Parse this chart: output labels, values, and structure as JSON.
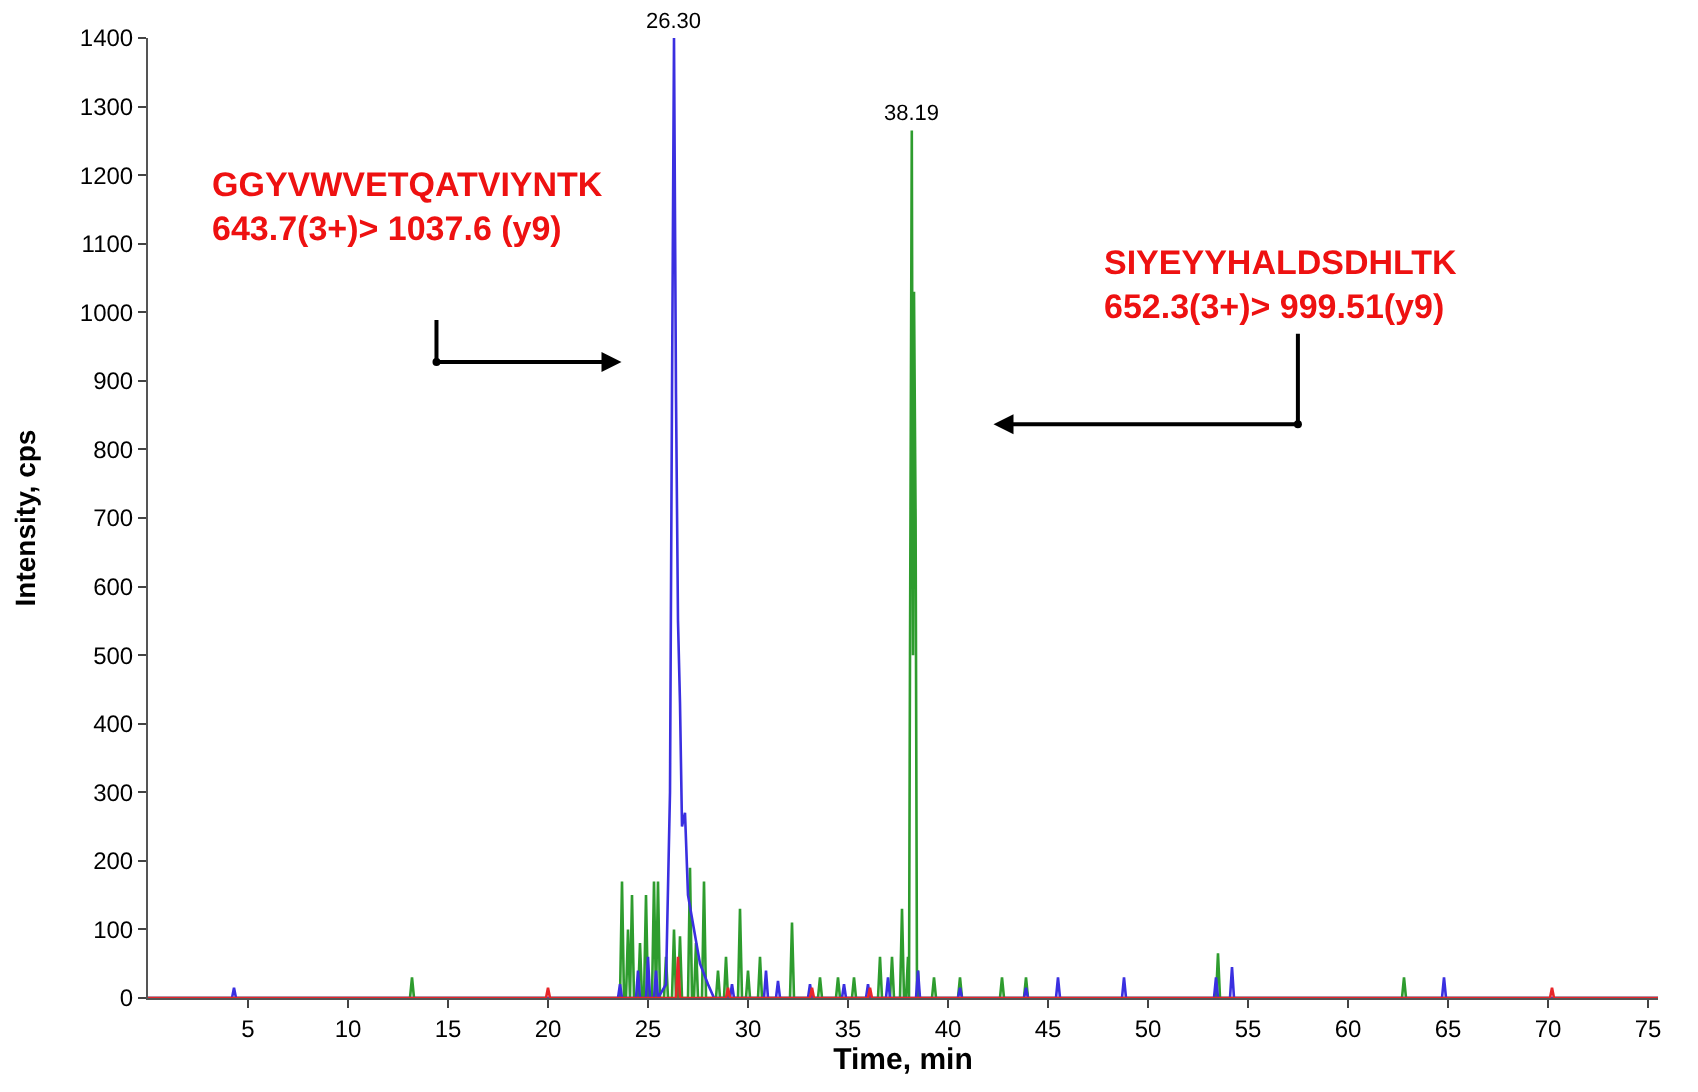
{
  "chart_data": {
    "type": "line",
    "xlabel": "Time, min",
    "ylabel": "Intensity, cps",
    "xlim": [
      0,
      75.5
    ],
    "xticks": [
      5,
      10,
      15,
      20,
      25,
      30,
      35,
      40,
      45,
      50,
      55,
      60,
      65,
      70,
      75
    ],
    "ylim": [
      0,
      1400
    ],
    "yticks": [
      0,
      100,
      200,
      300,
      400,
      500,
      600,
      700,
      800,
      900,
      1000,
      1100,
      1200,
      1300,
      1400
    ],
    "legend": false,
    "marker": "none",
    "line_style": "solid",
    "series": [
      {
        "color": "#2e9c2e",
        "x": [
          0,
          13.1,
          13.2,
          13.3,
          23.6,
          23.7,
          23.8,
          23.9,
          24.0,
          24.1,
          24.2,
          24.3,
          24.5,
          24.6,
          24.7,
          24.8,
          24.9,
          25.0,
          25.2,
          25.3,
          25.4,
          25.5,
          25.6,
          25.8,
          25.9,
          26.0,
          26.2,
          26.3,
          26.4,
          26.5,
          26.6,
          26.7,
          27.0,
          27.1,
          27.2,
          27.3,
          27.4,
          27.5,
          27.7,
          27.8,
          27.9,
          28.4,
          28.5,
          28.6,
          28.8,
          28.9,
          29.0,
          29.5,
          29.6,
          29.7,
          29.9,
          30.0,
          30.1,
          30.5,
          30.6,
          30.7,
          32.1,
          32.2,
          32.3,
          33.5,
          33.6,
          33.7,
          34.4,
          34.5,
          34.6,
          35.2,
          35.3,
          35.4,
          36.5,
          36.6,
          36.7,
          37.1,
          37.2,
          37.3,
          37.6,
          37.7,
          37.8,
          37.9,
          38.0,
          38.05,
          38.1,
          38.19,
          38.25,
          38.3,
          38.38,
          38.45,
          38.5,
          38.55,
          39.2,
          39.3,
          39.4,
          40.5,
          40.6,
          40.7,
          42.6,
          42.7,
          42.8,
          43.8,
          43.9,
          44.0,
          53.4,
          53.5,
          53.6,
          62.7,
          62.8,
          62.9,
          75.5
        ],
        "values": [
          0,
          0,
          30,
          0,
          0,
          170,
          0,
          0,
          100,
          0,
          150,
          0,
          0,
          80,
          0,
          0,
          150,
          0,
          0,
          170,
          0,
          170,
          0,
          0,
          60,
          0,
          0,
          100,
          0,
          0,
          90,
          0,
          0,
          190,
          0,
          0,
          80,
          0,
          0,
          170,
          0,
          0,
          40,
          0,
          0,
          60,
          0,
          0,
          130,
          0,
          0,
          40,
          0,
          0,
          60,
          0,
          0,
          110,
          0,
          0,
          30,
          0,
          0,
          30,
          0,
          0,
          30,
          0,
          0,
          60,
          0,
          0,
          60,
          0,
          0,
          130,
          0,
          0,
          60,
          0,
          500,
          1265,
          500,
          1030,
          700,
          0,
          40,
          0,
          0,
          30,
          0,
          0,
          30,
          0,
          0,
          30,
          0,
          0,
          30,
          0,
          0,
          65,
          0,
          0,
          30,
          0,
          0
        ]
      },
      {
        "color": "#e8262a",
        "x": [
          0,
          19.9,
          20.0,
          20.1,
          26.4,
          26.5,
          26.6,
          28.9,
          29.0,
          29.1,
          33.1,
          33.2,
          33.3,
          36.0,
          36.1,
          36.2,
          70.1,
          70.2,
          70.3,
          75.5
        ],
        "values": [
          0,
          0,
          15,
          0,
          0,
          60,
          0,
          0,
          15,
          0,
          0,
          15,
          0,
          0,
          15,
          0,
          0,
          15,
          0,
          0
        ]
      },
      {
        "color": "#3a2fe0",
        "x": [
          0,
          4.2,
          4.3,
          4.4,
          23.5,
          23.6,
          23.7,
          24.4,
          24.5,
          24.6,
          24.9,
          25.0,
          25.1,
          25.3,
          25.4,
          25.5,
          25.9,
          26.1,
          26.2,
          26.3,
          26.4,
          26.5,
          26.6,
          26.7,
          26.85,
          27.0,
          27.3,
          27.6,
          28.0,
          28.3,
          29.1,
          29.2,
          29.3,
          30.8,
          30.9,
          31.0,
          31.4,
          31.5,
          31.6,
          33.0,
          33.1,
          33.2,
          34.7,
          34.8,
          34.9,
          35.9,
          36.0,
          36.1,
          36.9,
          37.0,
          37.1,
          38.4,
          38.5,
          38.6,
          40.5,
          40.6,
          40.7,
          43.8,
          43.9,
          44.0,
          45.4,
          45.5,
          45.6,
          48.7,
          48.8,
          48.9,
          53.3,
          53.4,
          53.5,
          54.1,
          54.2,
          54.3,
          64.7,
          64.8,
          64.9,
          75.5
        ],
        "values": [
          0,
          0,
          15,
          0,
          0,
          20,
          0,
          0,
          40,
          0,
          0,
          60,
          0,
          0,
          40,
          0,
          20,
          300,
          880,
          1400,
          880,
          550,
          430,
          250,
          270,
          150,
          100,
          50,
          20,
          0,
          0,
          20,
          0,
          0,
          40,
          0,
          0,
          25,
          0,
          0,
          20,
          0,
          0,
          20,
          0,
          0,
          20,
          0,
          0,
          30,
          0,
          0,
          40,
          0,
          0,
          15,
          0,
          0,
          15,
          0,
          0,
          30,
          0,
          0,
          30,
          0,
          0,
          30,
          0,
          0,
          45,
          0,
          0,
          30,
          0,
          0
        ]
      }
    ],
    "annotations": [
      {
        "text": "26.30",
        "x": 26.3,
        "y": 1400
      },
      {
        "text": "38.19",
        "x": 38.19,
        "y": 1265
      },
      "GGYVWVETQATVIYNTK\n643.7(3+)> 1037.6 (y9)",
      "SIYEYYHALDSDHLTK\n652.3(3+)> 999.51(y9)"
    ]
  }
}
